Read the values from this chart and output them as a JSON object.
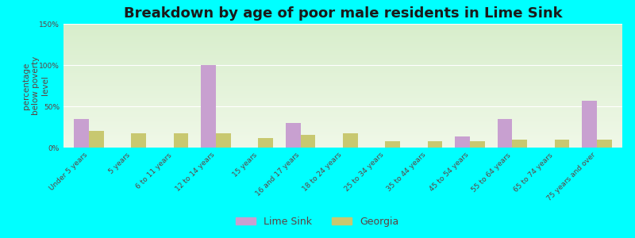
{
  "title": "Breakdown by age of poor male residents in Lime Sink",
  "ylabel": "percentage\nbelow poverty\nlevel",
  "categories": [
    "Under 5 years",
    "5 years",
    "6 to 11 years",
    "12 to 14 years",
    "15 years",
    "16 and 17 years",
    "18 to 24 years",
    "25 to 34 years",
    "35 to 44 years",
    "45 to 54 years",
    "55 to 64 years",
    "65 to 74 years",
    "75 years and over"
  ],
  "lime_sink": [
    35,
    0,
    0,
    100,
    0,
    30,
    0,
    0,
    0,
    13,
    35,
    0,
    57
  ],
  "georgia": [
    20,
    17,
    17,
    17,
    12,
    15,
    17,
    8,
    8,
    8,
    10,
    10,
    10
  ],
  "lime_sink_color": "#c8a0d0",
  "georgia_color": "#c8c870",
  "background_color": "#00ffff",
  "ylim": [
    0,
    150
  ],
  "yticks": [
    0,
    50,
    100,
    150
  ],
  "ytick_labels": [
    "0%",
    "50%",
    "100%",
    "150%"
  ],
  "title_fontsize": 13,
  "ylabel_fontsize": 7.5,
  "tick_fontsize": 6.5,
  "legend_fontsize": 9,
  "bar_width": 0.35
}
